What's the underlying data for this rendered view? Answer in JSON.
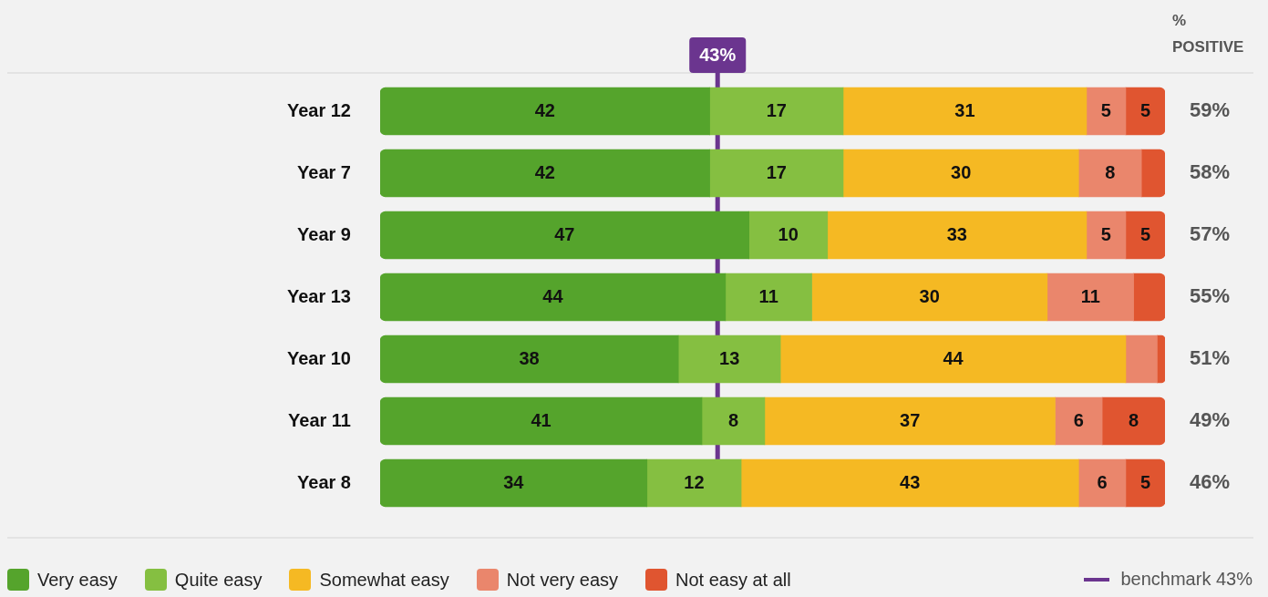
{
  "chart_data": {
    "type": "bar",
    "orientation": "horizontal",
    "stacked": true,
    "categories": [
      "Year 12",
      "Year 7",
      "Year 9",
      "Year 13",
      "Year 10",
      "Year 11",
      "Year 8"
    ],
    "series": [
      {
        "name": "Very easy",
        "color": "#55a42c",
        "values": [
          42,
          42,
          47,
          44,
          38,
          41,
          34
        ],
        "value_labels": [
          "42",
          "42",
          "47",
          "44",
          "38",
          "41",
          "34"
        ]
      },
      {
        "name": "Quite easy",
        "color": "#85bf41",
        "values": [
          17,
          17,
          10,
          11,
          13,
          8,
          12
        ],
        "value_labels": [
          "17",
          "17",
          "10",
          "11",
          "13",
          "8",
          "12"
        ]
      },
      {
        "name": "Somewhat easy",
        "color": "#f5b923",
        "values": [
          31,
          30,
          33,
          30,
          44,
          37,
          43
        ],
        "value_labels": [
          "31",
          "30",
          "33",
          "30",
          "44",
          "37",
          "43"
        ]
      },
      {
        "name": "Not very easy",
        "color": "#ea866c",
        "values": [
          5,
          8,
          5,
          11,
          4,
          6,
          6
        ],
        "value_labels": [
          "5",
          "8",
          "5",
          "11",
          null,
          "6",
          "6"
        ]
      },
      {
        "name": "Not easy at all",
        "color": "#e05530",
        "values": [
          5,
          3,
          5,
          4,
          1,
          8,
          5
        ],
        "value_labels": [
          "5",
          null,
          "5",
          null,
          null,
          "8",
          "5"
        ]
      }
    ],
    "xlim": [
      0,
      100
    ],
    "tick_labels": "y",
    "grid": false,
    "legend": "bottom",
    "ref_lines": [
      {
        "axis": "x",
        "value": 43,
        "label": "43%",
        "color": "#6b358f"
      }
    ],
    "annotations": [
      "% POSITIVE",
      "benchmark 43%",
      "59%",
      "58%",
      "57%",
      "55%",
      "51%",
      "49%",
      "46%"
    ]
  }
}
